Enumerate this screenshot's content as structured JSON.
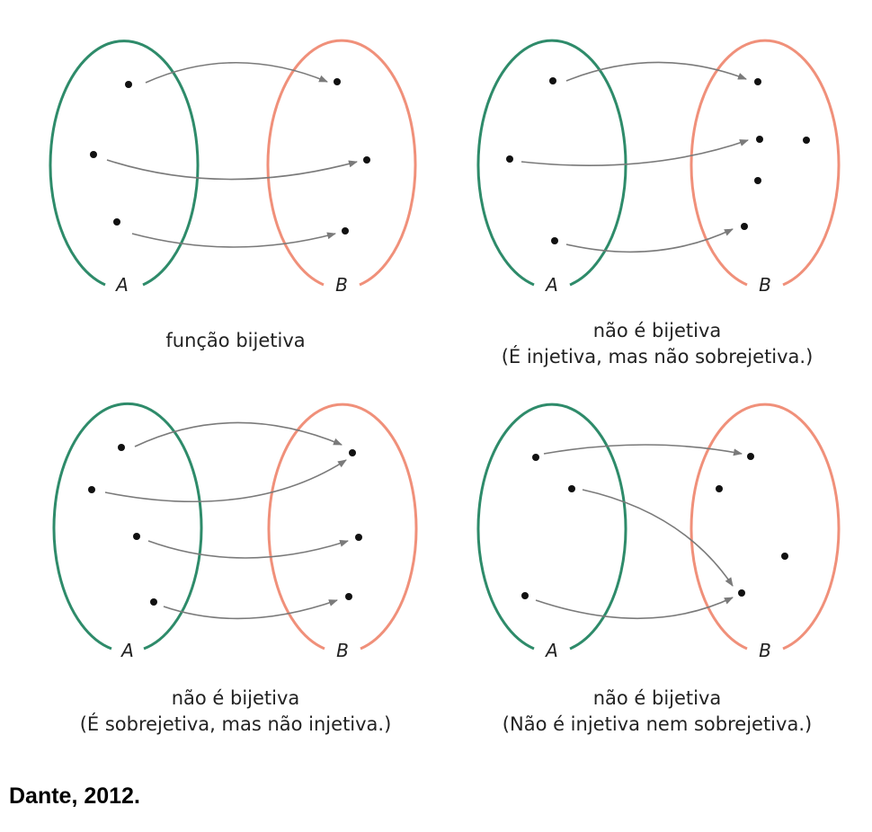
{
  "panels": [
    {
      "set_a_label": "A",
      "set_b_label": "B",
      "caption_line1": "função bijetiva",
      "caption_line2": ""
    },
    {
      "set_a_label": "A",
      "set_b_label": "B",
      "caption_line1": "não é bijetiva",
      "caption_line2": "(É injetiva, mas não sobrejetiva.)"
    },
    {
      "set_a_label": "A",
      "set_b_label": "B",
      "caption_line1": "não é bijetiva",
      "caption_line2": "(É sobrejetiva, mas não injetiva.)"
    },
    {
      "set_a_label": "A",
      "set_b_label": "B",
      "caption_line1": "não é bijetiva",
      "caption_line2": "(Não é injetiva nem sobrejetiva.)"
    }
  ],
  "source": "Dante, 2012.",
  "colors": {
    "set_a": "#2e8b6a",
    "set_b": "#f0907a",
    "arrow": "#7a7a7a",
    "dot": "#111111"
  }
}
